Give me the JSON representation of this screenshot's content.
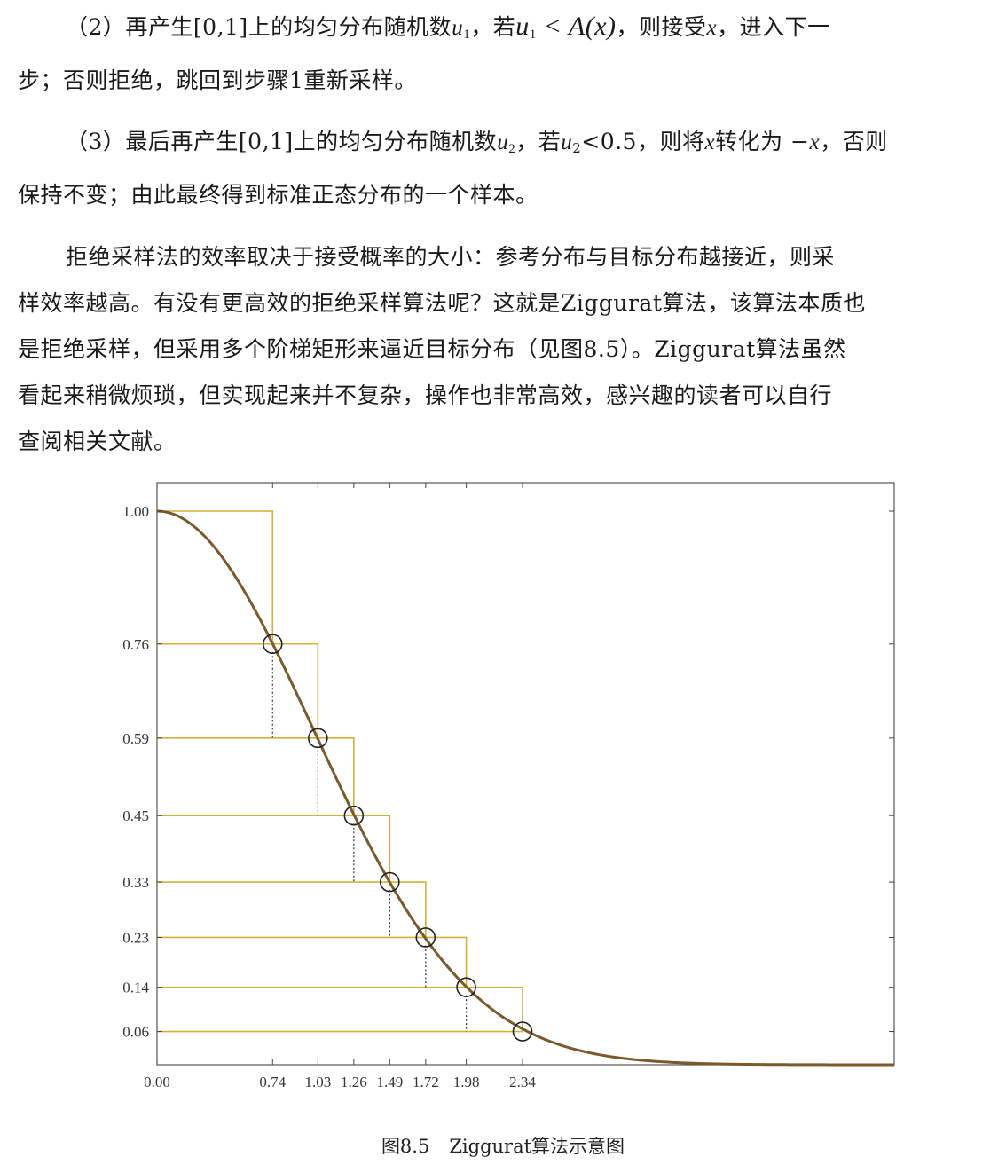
{
  "paragraphs": {
    "step2": {
      "l1_a": "（2）再产生[0,1]上的均匀分布随机数",
      "l1_u": "u",
      "l1_u_sub": "1",
      "l1_b": "，若",
      "l1_cond_u": "u",
      "l1_cond_sub": "1",
      "l1_cond_rest": " < A(x)",
      "l1_c": "，则接受",
      "l1_x": "x",
      "l1_d": "，进入下一",
      "l2": "步；否则拒绝，跳回到步骤1重新采样。"
    },
    "step3": {
      "l1_a": "（3）最后再产生[0,1]上的均匀分布随机数",
      "l1_u": "u",
      "l1_u_sub": "2",
      "l1_b": "，若",
      "l1_cond_u": "u",
      "l1_cond_sub": "2",
      "l1_cond_rest": "<0.5",
      "l1_c": "，则将",
      "l1_x": "x",
      "l1_d": "转化为 −",
      "l1_x2": "x",
      "l1_e": "，否则",
      "l2": "保持不变；由此最终得到标准正态分布的一个样本。"
    },
    "efficiency": {
      "l1": "拒绝采样法的效率取决于接受概率的大小：参考分布与目标分布越接近，则采",
      "l2": "样效率越高。有没有更高效的拒绝采样算法呢？这就是Ziggurat算法，该算法本质也",
      "l3": "是拒绝采样，但采用多个阶梯矩形来逼近目标分布（见图8.5）。Ziggurat算法虽然",
      "l4": "看起来稍微烦琐，但实现起来并不复杂，操作也非常高效，感兴趣的读者可以自行",
      "l5": "查阅相关文献。"
    }
  },
  "figure": {
    "caption_number": "图8.5",
    "caption_text": "Ziggurat算法示意图"
  },
  "chart_data": {
    "type": "line",
    "title": "",
    "xlabel": "",
    "ylabel": "",
    "function": "exp(-x^2/2)",
    "xlim": [
      0,
      4.72
    ],
    "ylim": [
      0,
      1.05
    ],
    "x_tick_labels": [
      "0.00",
      "0.74",
      "1.03",
      "1.26",
      "1.49",
      "1.72",
      "1.98",
      "2.34"
    ],
    "x_ticks": [
      0.0,
      0.74,
      1.03,
      1.26,
      1.49,
      1.72,
      1.98,
      2.34
    ],
    "y_tick_labels": [
      "1.00",
      "0.76",
      "0.59",
      "0.45",
      "0.33",
      "0.23",
      "0.14",
      "0.06"
    ],
    "y_ticks": [
      1.0,
      0.76,
      0.59,
      0.45,
      0.33,
      0.23,
      0.14,
      0.06
    ],
    "layers": [
      {
        "x_right": 0.74,
        "y_top": 1.0,
        "y_bottom": 0.76
      },
      {
        "x_right": 1.03,
        "y_top": 0.76,
        "y_bottom": 0.59
      },
      {
        "x_right": 1.26,
        "y_top": 0.59,
        "y_bottom": 0.45
      },
      {
        "x_right": 1.49,
        "y_top": 0.45,
        "y_bottom": 0.33
      },
      {
        "x_right": 1.72,
        "y_top": 0.33,
        "y_bottom": 0.23
      },
      {
        "x_right": 1.98,
        "y_top": 0.23,
        "y_bottom": 0.14
      },
      {
        "x_right": 2.34,
        "y_top": 0.14,
        "y_bottom": 0.06
      }
    ],
    "curve_points": [
      {
        "x": 0.74,
        "y": 0.76
      },
      {
        "x": 1.03,
        "y": 0.59
      },
      {
        "x": 1.26,
        "y": 0.45
      },
      {
        "x": 1.49,
        "y": 0.33
      },
      {
        "x": 1.72,
        "y": 0.23
      },
      {
        "x": 1.98,
        "y": 0.14
      },
      {
        "x": 2.34,
        "y": 0.06
      }
    ],
    "colors": {
      "curve": "#7a5a2a",
      "rect": "#d4b036",
      "circle": "#222222",
      "dotted": "#333333",
      "axis": "#444444"
    }
  }
}
